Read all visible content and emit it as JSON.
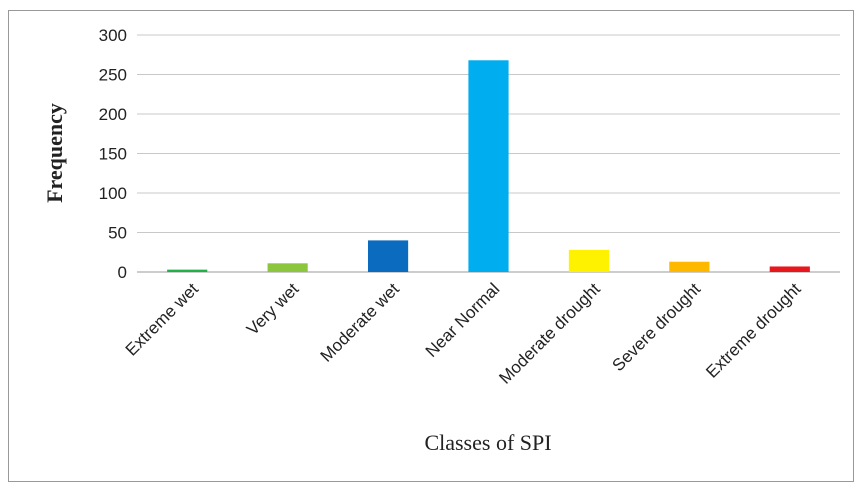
{
  "chart_data": {
    "type": "bar",
    "categories": [
      "Extreme wet",
      "Very wet",
      "Moderate wet",
      "Near Normal",
      "Moderate drought",
      "Severe drought",
      "Extreme drought"
    ],
    "values": [
      3,
      11,
      40,
      268,
      28,
      13,
      7
    ],
    "colors": [
      "#22b04b",
      "#8cc63f",
      "#0a6bbf",
      "#00adef",
      "#fff200",
      "#ffb800",
      "#e8161d"
    ],
    "xlabel": "Classes of SPI",
    "ylabel": "Frequency",
    "ylim": [
      0,
      300
    ],
    "yticks": [
      0,
      50,
      100,
      150,
      200,
      250,
      300
    ],
    "grid": true
  }
}
